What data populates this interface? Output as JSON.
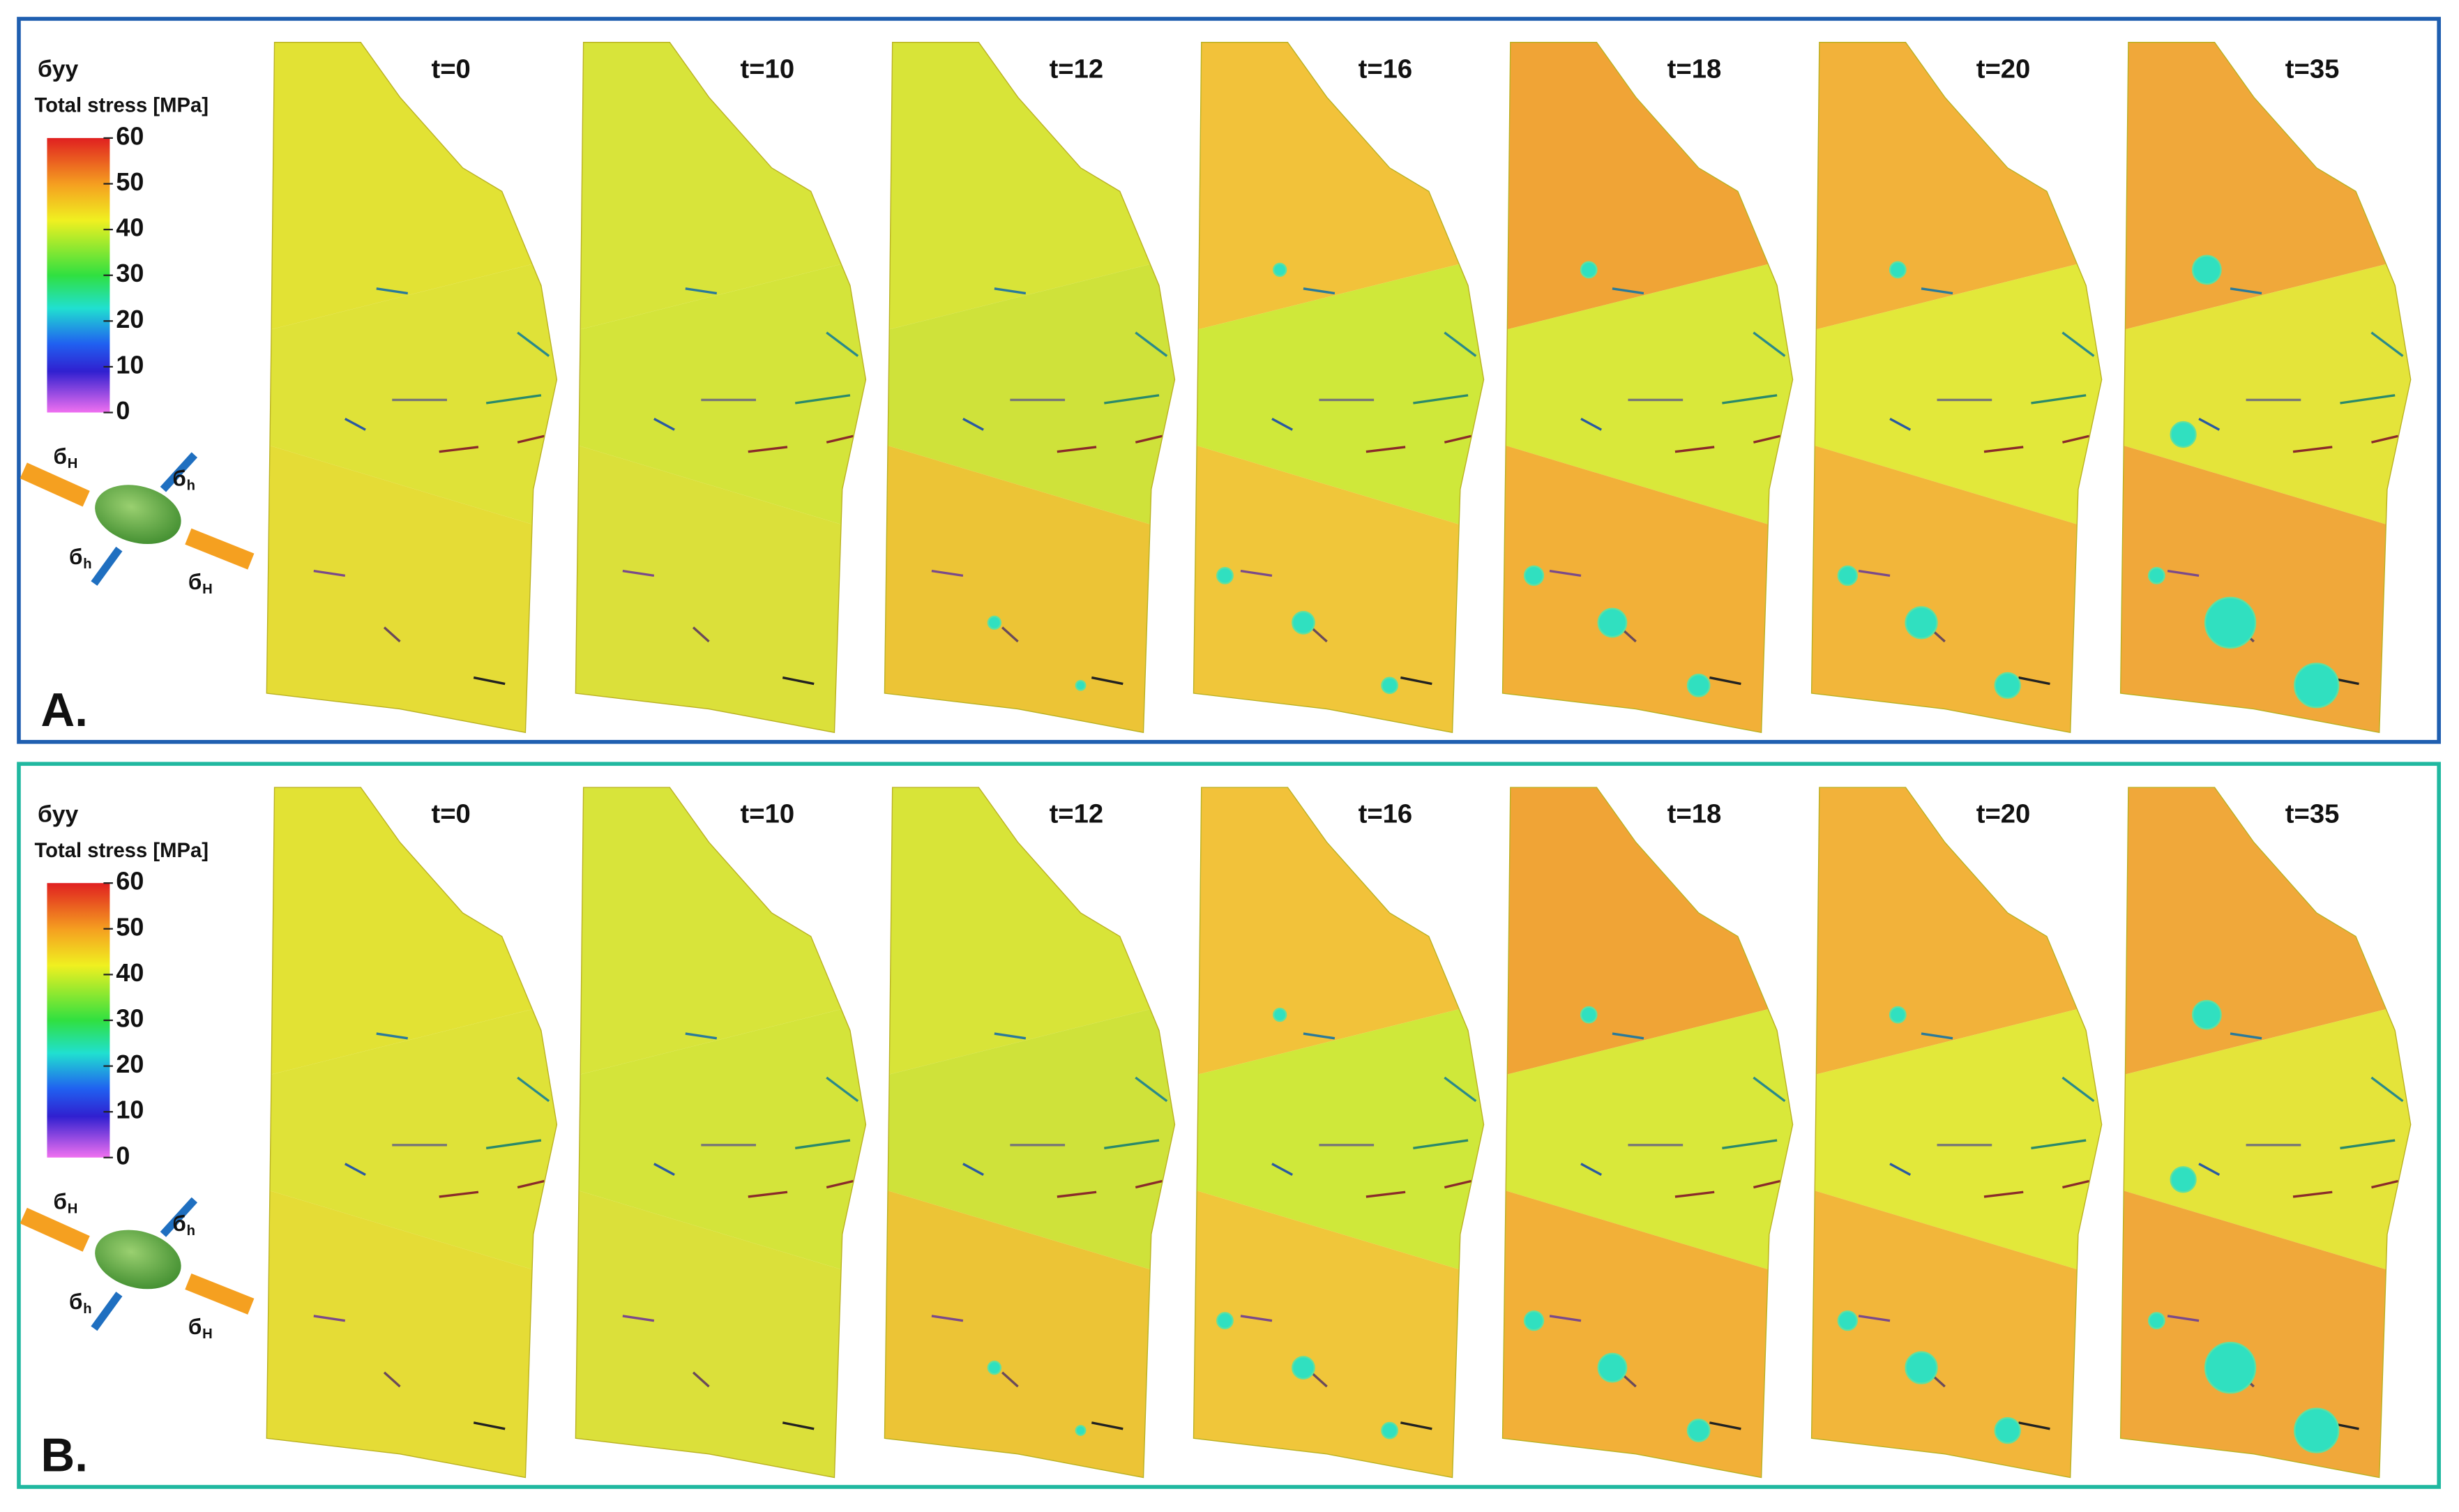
{
  "panels": [
    {
      "label": "A.",
      "colorbar": {
        "title": "бyy",
        "subtitle": "Total stress [MPa]",
        "ticks": [
          60,
          50,
          40,
          30,
          20,
          10,
          0
        ]
      },
      "stress_labels": [
        {
          "symbol": "б",
          "sub": "H"
        },
        {
          "symbol": "б",
          "sub": "h"
        },
        {
          "symbol": "б",
          "sub": "h"
        },
        {
          "symbol": "б",
          "sub": "H"
        }
      ],
      "times": [
        "t=0",
        "t=10",
        "t=12",
        "t=16",
        "t=18",
        "t=20",
        "t=35"
      ]
    },
    {
      "label": "B.",
      "colorbar": {
        "title": "бyy",
        "subtitle": "Total stress [MPa]",
        "ticks": [
          60,
          50,
          40,
          30,
          20,
          10,
          0
        ]
      },
      "stress_labels": [
        {
          "symbol": "б",
          "sub": "H"
        },
        {
          "symbol": "б",
          "sub": "h"
        },
        {
          "symbol": "б",
          "sub": "h"
        },
        {
          "symbol": "б",
          "sub": "H"
        }
      ],
      "times": [
        "t=0",
        "t=10",
        "t=12",
        "t=16",
        "t=18",
        "t=20",
        "t=35"
      ]
    }
  ]
}
